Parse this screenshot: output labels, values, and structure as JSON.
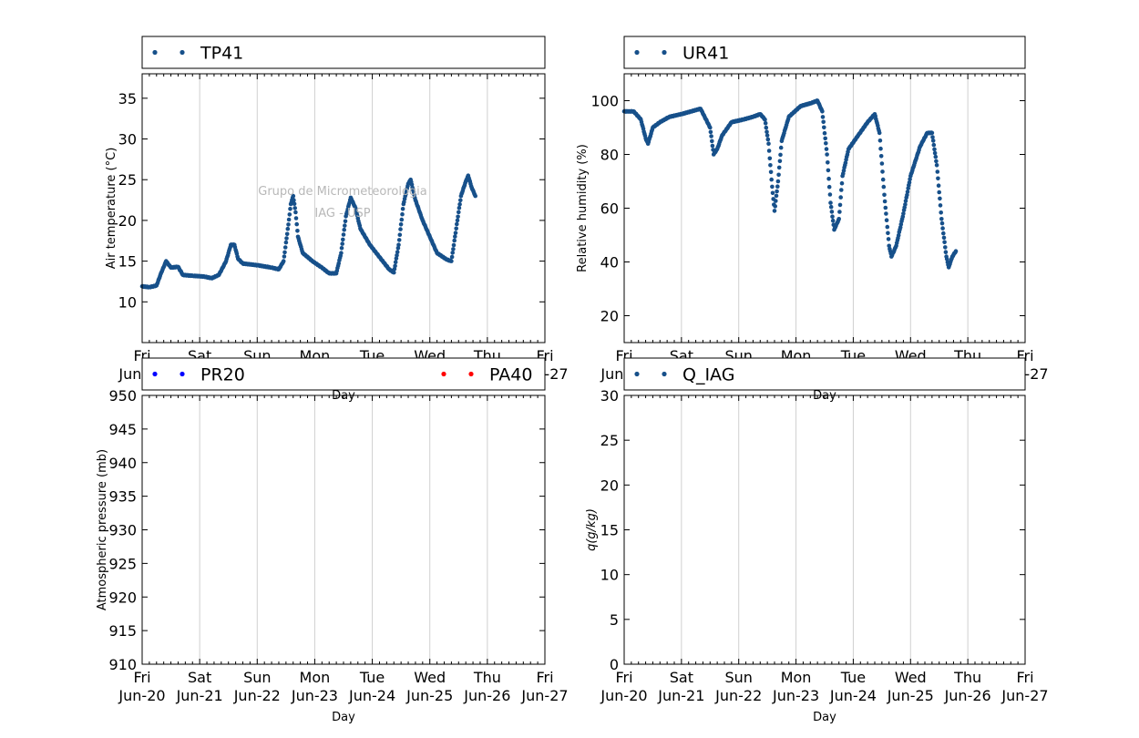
{
  "figure": {
    "watermark_line1": "Grupo de Micrometeorologia",
    "watermark_line2": "IAG - USP"
  },
  "x_ticks": [
    {
      "day": "Fri",
      "date": "Jun-20"
    },
    {
      "day": "Sat",
      "date": "Jun-21"
    },
    {
      "day": "Sun",
      "date": "Jun-22"
    },
    {
      "day": "Mon",
      "date": "Jun-23"
    },
    {
      "day": "Tue",
      "date": "Jun-24"
    },
    {
      "day": "Wed",
      "date": "Jun-25"
    },
    {
      "day": "Thu",
      "date": "Jun-26"
    },
    {
      "day": "Fri",
      "date": "Jun-27"
    }
  ],
  "chart_data": [
    {
      "id": "temperature",
      "type": "scatter",
      "xlabel": "Day",
      "ylabel": "Air temperature (°C)",
      "xlim": [
        "2014-06-20",
        "2014-06-27"
      ],
      "ylim": [
        5,
        38
      ],
      "yticks": [
        10,
        15,
        20,
        25,
        30,
        35
      ],
      "grid": "vertical",
      "legend": "top",
      "series": [
        {
          "name": "TP41",
          "color": "#17508a",
          "points": [
            [
              "2014-06-20 00:00",
              11.9
            ],
            [
              "2014-06-20 03:00",
              11.8
            ],
            [
              "2014-06-20 06:00",
              12.0
            ],
            [
              "2014-06-20 08:00",
              13.6
            ],
            [
              "2014-06-20 10:00",
              15.0
            ],
            [
              "2014-06-20 12:00",
              14.2
            ],
            [
              "2014-06-20 15:00",
              14.3
            ],
            [
              "2014-06-20 17:00",
              13.3
            ],
            [
              "2014-06-20 21:00",
              13.2
            ],
            [
              "2014-06-21 02:00",
              13.1
            ],
            [
              "2014-06-21 05:00",
              12.9
            ],
            [
              "2014-06-21 08:00",
              13.3
            ],
            [
              "2014-06-21 11:00",
              15.0
            ],
            [
              "2014-06-21 13:00",
              17.0
            ],
            [
              "2014-06-21 14:30",
              17.0
            ],
            [
              "2014-06-21 16:00",
              15.3
            ],
            [
              "2014-06-21 18:00",
              14.7
            ],
            [
              "2014-06-22 00:00",
              14.5
            ],
            [
              "2014-06-22 06:00",
              14.2
            ],
            [
              "2014-06-22 09:00",
              14.0
            ],
            [
              "2014-06-22 11:00",
              15.0
            ],
            [
              "2014-06-22 13:00",
              19.5
            ],
            [
              "2014-06-22 14:00",
              22.0
            ],
            [
              "2014-06-22 15:00",
              23.0
            ],
            [
              "2014-06-22 16:00",
              21.0
            ],
            [
              "2014-06-22 17:00",
              18.0
            ],
            [
              "2014-06-22 19:00",
              16.0
            ],
            [
              "2014-06-22 23:00",
              15.0
            ],
            [
              "2014-06-23 03:00",
              14.2
            ],
            [
              "2014-06-23 06:00",
              13.5
            ],
            [
              "2014-06-23 09:00",
              13.5
            ],
            [
              "2014-06-23 11:00",
              16.0
            ],
            [
              "2014-06-23 13:00",
              20.5
            ],
            [
              "2014-06-23 15:00",
              22.8
            ],
            [
              "2014-06-23 17:00",
              21.5
            ],
            [
              "2014-06-23 19:00",
              19.0
            ],
            [
              "2014-06-23 23:00",
              17.0
            ],
            [
              "2014-06-24 03:00",
              15.5
            ],
            [
              "2014-06-24 07:00",
              14.0
            ],
            [
              "2014-06-24 09:00",
              13.6
            ],
            [
              "2014-06-24 11:00",
              17.0
            ],
            [
              "2014-06-24 13:00",
              22.0
            ],
            [
              "2014-06-24 15:00",
              24.5
            ],
            [
              "2014-06-24 16:00",
              25.0
            ],
            [
              "2014-06-24 18:00",
              22.5
            ],
            [
              "2014-06-24 21:00",
              20.0
            ],
            [
              "2014-06-25 00:00",
              18.0
            ],
            [
              "2014-06-25 03:00",
              16.0
            ],
            [
              "2014-06-25 07:00",
              15.2
            ],
            [
              "2014-06-25 09:00",
              15.0
            ],
            [
              "2014-06-25 11:00",
              19.0
            ],
            [
              "2014-06-25 13:00",
              23.0
            ],
            [
              "2014-06-25 15:00",
              24.8
            ],
            [
              "2014-06-25 16:00",
              25.5
            ],
            [
              "2014-06-25 17:30",
              24.0
            ],
            [
              "2014-06-25 19:00",
              23.0
            ]
          ]
        }
      ]
    },
    {
      "id": "humidity",
      "type": "scatter",
      "xlabel": "Day",
      "ylabel": "Relative humidity (%)",
      "xlim": [
        "2014-06-20",
        "2014-06-27"
      ],
      "ylim": [
        10,
        110
      ],
      "yticks": [
        20,
        40,
        60,
        80,
        100
      ],
      "grid": "vertical",
      "legend": "top",
      "series": [
        {
          "name": "UR41",
          "color": "#17508a",
          "points": [
            [
              "2014-06-20 00:00",
              96
            ],
            [
              "2014-06-20 04:00",
              96
            ],
            [
              "2014-06-20 07:00",
              93
            ],
            [
              "2014-06-20 09:00",
              86
            ],
            [
              "2014-06-20 10:00",
              84
            ],
            [
              "2014-06-20 12:00",
              90
            ],
            [
              "2014-06-20 15:00",
              92
            ],
            [
              "2014-06-20 19:00",
              94
            ],
            [
              "2014-06-21 00:00",
              95
            ],
            [
              "2014-06-21 04:00",
              96
            ],
            [
              "2014-06-21 08:00",
              97
            ],
            [
              "2014-06-21 12:00",
              90
            ],
            [
              "2014-06-21 13:30",
              80
            ],
            [
              "2014-06-21 15:00",
              82
            ],
            [
              "2014-06-21 17:00",
              87
            ],
            [
              "2014-06-21 21:00",
              92
            ],
            [
              "2014-06-22 02:00",
              93
            ],
            [
              "2014-06-22 06:00",
              94
            ],
            [
              "2014-06-22 09:00",
              95
            ],
            [
              "2014-06-22 11:00",
              93
            ],
            [
              "2014-06-22 12:30",
              84
            ],
            [
              "2014-06-22 14:00",
              68
            ],
            [
              "2014-06-22 15:00",
              59
            ],
            [
              "2014-06-22 16:30",
              70
            ],
            [
              "2014-06-22 18:00",
              85
            ],
            [
              "2014-06-22 21:00",
              94
            ],
            [
              "2014-06-23 02:00",
              98
            ],
            [
              "2014-06-23 06:00",
              99
            ],
            [
              "2014-06-23 09:00",
              100
            ],
            [
              "2014-06-23 11:00",
              96
            ],
            [
              "2014-06-23 13:00",
              80
            ],
            [
              "2014-06-23 14:30",
              62
            ],
            [
              "2014-06-23 16:00",
              52
            ],
            [
              "2014-06-23 18:00",
              56
            ],
            [
              "2014-06-23 19:30",
              72
            ],
            [
              "2014-06-23 22:00",
              82
            ],
            [
              "2014-06-24 02:00",
              87
            ],
            [
              "2014-06-24 06:00",
              92
            ],
            [
              "2014-06-24 09:00",
              95
            ],
            [
              "2014-06-24 11:00",
              88
            ],
            [
              "2014-06-24 13:00",
              65
            ],
            [
              "2014-06-24 15:00",
              46
            ],
            [
              "2014-06-24 16:00",
              42
            ],
            [
              "2014-06-24 18:00",
              46
            ],
            [
              "2014-06-24 21:00",
              58
            ],
            [
              "2014-06-25 00:00",
              72
            ],
            [
              "2014-06-25 04:00",
              83
            ],
            [
              "2014-06-25 07:00",
              88
            ],
            [
              "2014-06-25 09:00",
              88
            ],
            [
              "2014-06-25 11:00",
              76
            ],
            [
              "2014-06-25 13:00",
              56
            ],
            [
              "2014-06-25 15:00",
              42
            ],
            [
              "2014-06-25 16:00",
              38
            ],
            [
              "2014-06-25 17:30",
              42
            ],
            [
              "2014-06-25 19:00",
              44
            ]
          ]
        }
      ]
    },
    {
      "id": "pressure",
      "type": "scatter",
      "xlabel": "Day",
      "ylabel": "Atmospheric pressure (mb)",
      "xlim": [
        "2014-06-20",
        "2014-06-27"
      ],
      "ylim": [
        910,
        950
      ],
      "yticks": [
        910,
        915,
        920,
        925,
        930,
        935,
        940,
        945,
        950
      ],
      "grid": "vertical",
      "legend": "top",
      "series": [
        {
          "name": "PR20",
          "color": "#0000ff",
          "points": []
        },
        {
          "name": "PA40",
          "color": "#ff0000",
          "points": []
        }
      ]
    },
    {
      "id": "specific_humidity",
      "type": "scatter",
      "xlabel": "Day",
      "ylabel": "q(g/kg)",
      "xlim": [
        "2014-06-20",
        "2014-06-27"
      ],
      "ylim": [
        0,
        30
      ],
      "yticks": [
        0,
        5,
        10,
        15,
        20,
        25,
        30
      ],
      "grid": "vertical",
      "legend": "top",
      "series": [
        {
          "name": "Q_IAG",
          "color": "#17508a",
          "points": []
        }
      ]
    }
  ]
}
